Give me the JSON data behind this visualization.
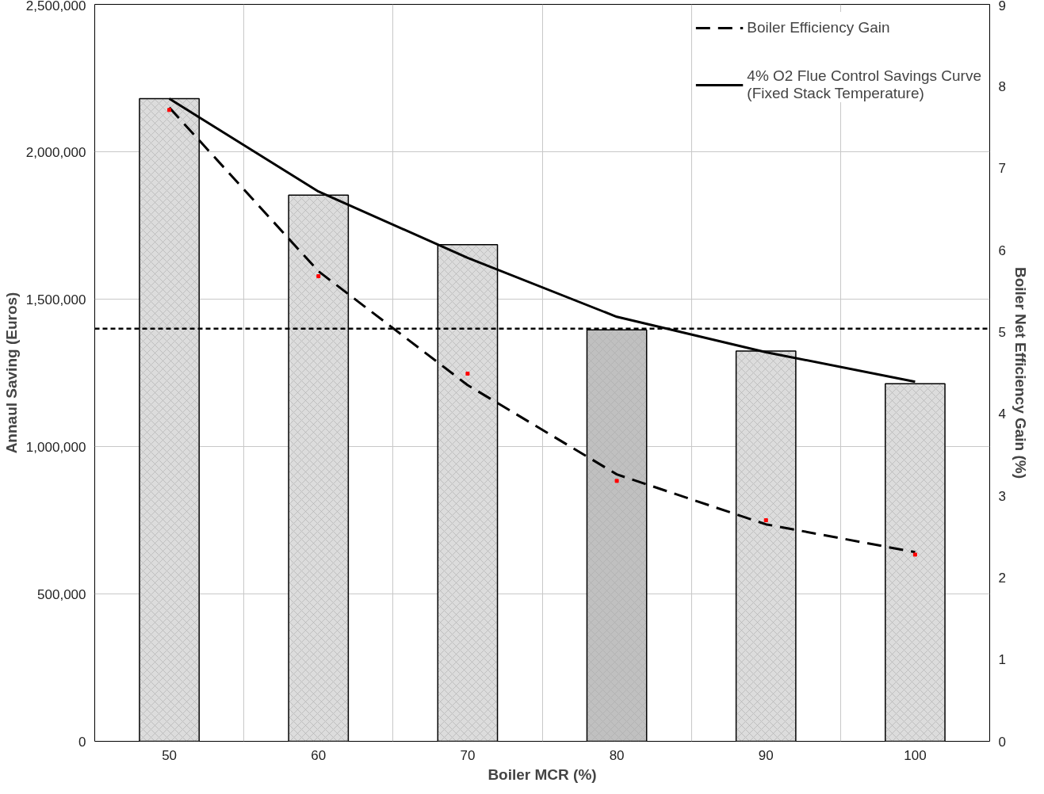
{
  "chart_data": {
    "type": "bar",
    "xlabel": "Boiler MCR (%)",
    "ylabel": "Annaul Saving (Euros)",
    "y2label": "Boiler Net Efficiency Gain (%)",
    "categories": [
      "50",
      "60",
      "70",
      "80",
      "90",
      "100"
    ],
    "series": [
      {
        "colors": [
          "#dcdcdc",
          "#dcdcdc",
          "#dcdcdc",
          "#c0c0c0",
          "#dcdcdc",
          "#dcdcdc"
        ],
        "values": [
          2180000,
          1853000,
          1685000,
          1396000,
          1324000,
          1213000
        ]
      },
      {
        "type": "line",
        "name": "Boiler Efficiency Gain",
        "color": "#000000",
        "line_style": "dashed",
        "axis": "y2",
        "values": [
          7.74,
          5.74,
          4.35,
          3.26,
          2.65,
          2.31
        ]
      },
      {
        "type": "line",
        "name": "4% O2 Flue Control Savings Curve\n(Fixed Stack Temperature)",
        "color": "#000000",
        "line_style": "solid",
        "values": [
          2180000,
          1865000,
          1640000,
          1440000,
          1320000,
          1220000
        ]
      },
      {
        "type": "scatter",
        "color": "#ff0000",
        "axis": "y2",
        "marker": "square",
        "values": [
          7.71,
          5.68,
          4.49,
          3.18,
          2.7,
          2.28
        ]
      }
    ],
    "ylim": [
      0,
      2500000
    ],
    "yticks": [
      {
        "value": 0,
        "label": "0"
      },
      {
        "value": 500000,
        "label": "500,000"
      },
      {
        "value": 1000000,
        "label": "1,000,000"
      },
      {
        "value": 1500000,
        "label": "1,500,000"
      },
      {
        "value": 2000000,
        "label": "2,000,000"
      },
      {
        "value": 2500000,
        "label": "2,500,000"
      }
    ],
    "y2lim": [
      0,
      9
    ],
    "y2ticks": [
      0,
      1,
      2,
      3,
      4,
      5,
      6,
      7,
      8,
      9
    ],
    "ref_lines": [
      {
        "axis": "y",
        "value": 1400000,
        "label": null,
        "line_style": "dashed",
        "color": "#000000"
      }
    ],
    "grid": true,
    "legend": "top right"
  }
}
